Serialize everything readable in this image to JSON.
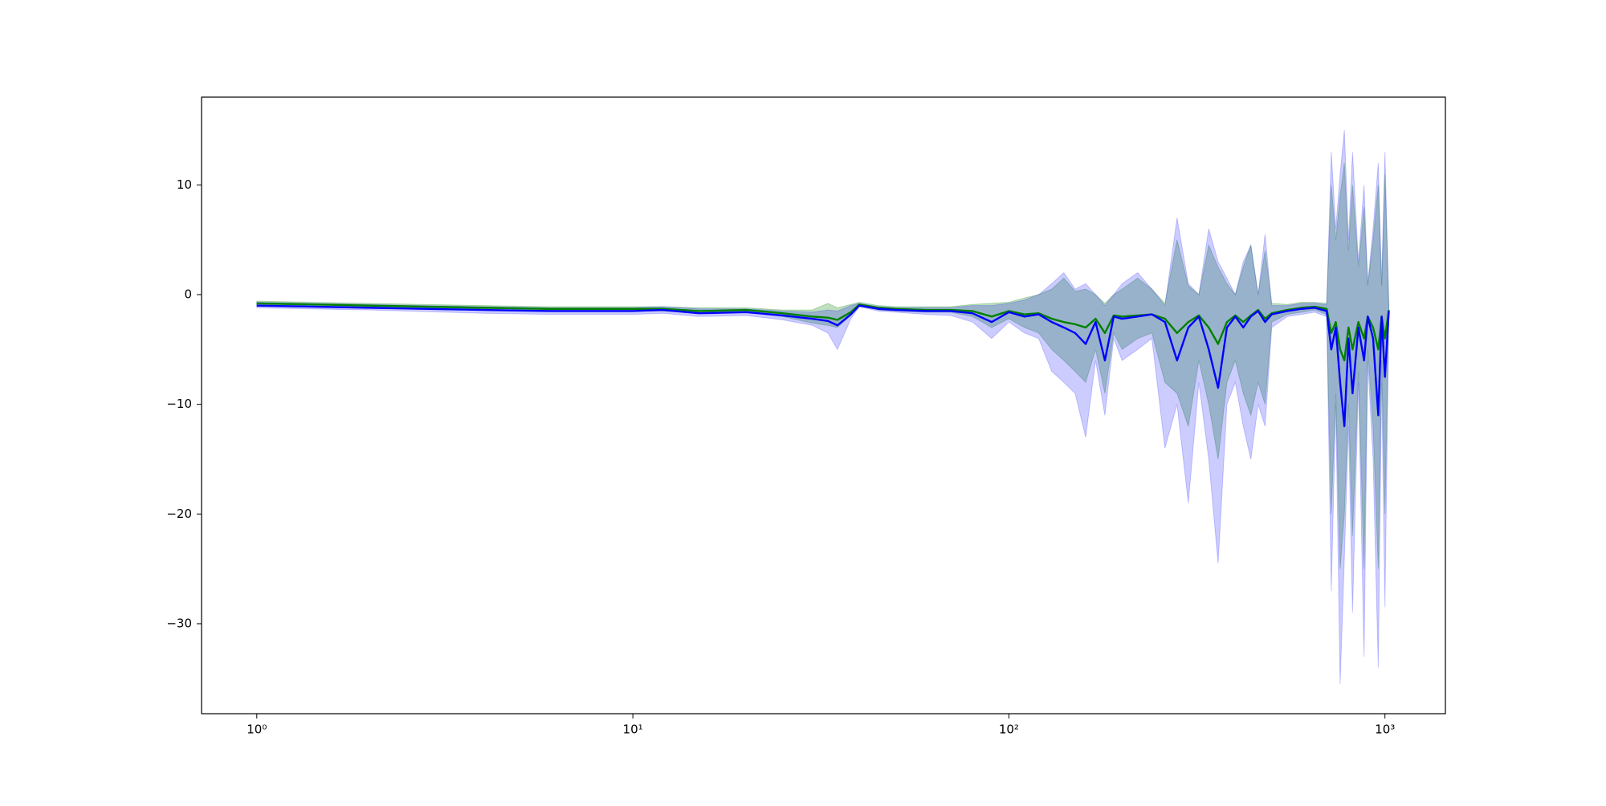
{
  "chart_data": {
    "type": "line",
    "xscale": "log",
    "xlim": [
      0.713,
      1448
    ],
    "ylim": [
      -38.2,
      18.0
    ],
    "xticks": [
      {
        "value": 1,
        "label": "10⁰"
      },
      {
        "value": 10,
        "label": "10¹"
      },
      {
        "value": 100,
        "label": "10²"
      },
      {
        "value": 1000,
        "label": "10³"
      }
    ],
    "yticks": [
      {
        "value": -30,
        "label": "−30"
      },
      {
        "value": -20,
        "label": "−20"
      },
      {
        "value": -10,
        "label": "−10"
      },
      0,
      10
    ],
    "x": [
      1,
      2,
      4,
      6,
      10,
      12,
      15,
      20,
      25,
      30,
      33,
      35,
      38,
      40,
      45,
      50,
      60,
      70,
      80,
      90,
      100,
      110,
      120,
      130,
      140,
      150,
      160,
      170,
      180,
      190,
      200,
      220,
      240,
      260,
      280,
      300,
      320,
      340,
      360,
      380,
      400,
      420,
      440,
      460,
      480,
      500,
      550,
      600,
      650,
      700,
      720,
      740,
      760,
      780,
      800,
      820,
      850,
      880,
      900,
      930,
      960,
      980,
      1000,
      1024
    ],
    "series": [
      {
        "color": "#008000",
        "band_opacity": 0.25,
        "values": [
          -0.8,
          -1.0,
          -1.2,
          -1.3,
          -1.3,
          -1.3,
          -1.5,
          -1.4,
          -1.7,
          -2.0,
          -2.1,
          -2.3,
          -1.6,
          -0.9,
          -1.2,
          -1.3,
          -1.4,
          -1.4,
          -1.5,
          -2.0,
          -1.5,
          -1.8,
          -1.7,
          -2.2,
          -2.5,
          -2.7,
          -3.0,
          -2.2,
          -3.5,
          -1.9,
          -2.0,
          -1.9,
          -1.8,
          -2.2,
          -3.5,
          -2.5,
          -1.9,
          -3.0,
          -4.5,
          -2.5,
          -1.9,
          -2.5,
          -1.9,
          -1.4,
          -2.2,
          -1.7,
          -1.4,
          -1.2,
          -1.1,
          -1.3,
          -3.5,
          -2.5,
          -5.0,
          -6.0,
          -3.0,
          -5.0,
          -2.5,
          -4.0,
          -2.0,
          -3.0,
          -5.0,
          -2.0,
          -4.0,
          -1.4
        ],
        "lower": [
          -1.0,
          -1.2,
          -1.4,
          -1.5,
          -1.5,
          -1.5,
          -1.7,
          -1.6,
          -2.0,
          -2.6,
          -2.8,
          -3.0,
          -1.9,
          -1.0,
          -1.4,
          -1.5,
          -1.6,
          -1.6,
          -2.0,
          -3.0,
          -2.2,
          -3.0,
          -3.5,
          -5.0,
          -6.0,
          -7.0,
          -8.0,
          -5.0,
          -9.0,
          -3.5,
          -5.0,
          -4.0,
          -3.5,
          -8.0,
          -9.0,
          -12.0,
          -6.0,
          -10.0,
          -15.0,
          -8.0,
          -6.0,
          -9.0,
          -11.0,
          -8.0,
          -10.0,
          -2.5,
          -1.8,
          -1.6,
          -1.4,
          -1.8,
          -20.0,
          -9.0,
          -25.0,
          -20.0,
          -10.0,
          -22.0,
          -7.0,
          -25.0,
          -5.0,
          -12.0,
          -25.0,
          -6.0,
          -20.0,
          -1.8
        ],
        "upper": [
          -0.6,
          -0.8,
          -1.0,
          -1.1,
          -1.1,
          -1.1,
          -1.2,
          -1.2,
          -1.4,
          -1.4,
          -0.8,
          -1.2,
          -0.9,
          -0.7,
          -1.0,
          -1.1,
          -1.1,
          -1.1,
          -0.9,
          -0.8,
          -0.7,
          -0.3,
          0.0,
          0.5,
          1.5,
          0.3,
          0.5,
          0.0,
          -0.8,
          0.0,
          0.5,
          1.5,
          0.5,
          -0.8,
          5.0,
          0.8,
          0.0,
          4.5,
          2.5,
          1.0,
          0.0,
          2.5,
          4.5,
          0.0,
          4.0,
          -0.8,
          -0.9,
          -0.7,
          -0.7,
          -0.8,
          10.0,
          5.0,
          9.0,
          12.0,
          4.0,
          10.0,
          2.5,
          8.0,
          0.8,
          5.0,
          10.0,
          0.8,
          11.0,
          -0.8
        ]
      },
      {
        "color": "#0000ff",
        "band_opacity": 0.2,
        "values": [
          -1.0,
          -1.2,
          -1.4,
          -1.5,
          -1.5,
          -1.4,
          -1.7,
          -1.6,
          -1.9,
          -2.2,
          -2.4,
          -2.8,
          -1.8,
          -1.0,
          -1.3,
          -1.4,
          -1.5,
          -1.5,
          -1.7,
          -2.5,
          -1.6,
          -2.0,
          -1.8,
          -2.5,
          -3.0,
          -3.5,
          -4.5,
          -2.5,
          -6.0,
          -2.0,
          -2.2,
          -2.0,
          -1.8,
          -2.5,
          -6.0,
          -3.0,
          -2.0,
          -5.0,
          -8.5,
          -3.0,
          -2.0,
          -3.0,
          -2.0,
          -1.5,
          -2.5,
          -1.8,
          -1.5,
          -1.3,
          -1.2,
          -1.5,
          -5.0,
          -3.0,
          -8.0,
          -12.0,
          -4.0,
          -9.0,
          -3.0,
          -6.0,
          -2.0,
          -4.0,
          -11.0,
          -2.0,
          -7.5,
          -1.5
        ],
        "lower": [
          -1.2,
          -1.4,
          -1.7,
          -1.8,
          -1.8,
          -1.7,
          -2.0,
          -1.9,
          -2.3,
          -2.8,
          -3.5,
          -5.0,
          -2.2,
          -1.1,
          -1.5,
          -1.6,
          -1.8,
          -1.9,
          -2.5,
          -4.0,
          -2.5,
          -3.5,
          -4.0,
          -7.0,
          -8.0,
          -9.0,
          -13.0,
          -6.0,
          -11.0,
          -4.0,
          -6.0,
          -5.0,
          -4.0,
          -14.0,
          -10.0,
          -19.0,
          -8.0,
          -15.0,
          -24.5,
          -10.0,
          -8.0,
          -12.0,
          -15.0,
          -10.0,
          -12.0,
          -3.0,
          -2.0,
          -1.8,
          -1.6,
          -2.0,
          -27.0,
          -10.0,
          -35.5,
          -24.0,
          -12.0,
          -29.0,
          -8.0,
          -33.0,
          -6.0,
          -15.0,
          -34.0,
          -8.0,
          -28.5,
          -2.0
        ],
        "upper": [
          -0.7,
          -0.9,
          -1.1,
          -1.2,
          -1.2,
          -1.1,
          -1.3,
          -1.3,
          -1.5,
          -1.6,
          -1.4,
          -1.5,
          -1.0,
          -0.8,
          -1.1,
          -1.2,
          -1.2,
          -1.2,
          -1.0,
          -1.0,
          -0.8,
          -0.5,
          0.0,
          1.0,
          2.0,
          0.5,
          1.0,
          0.0,
          -1.0,
          0.0,
          1.0,
          2.0,
          0.5,
          -1.0,
          7.0,
          1.0,
          0.0,
          6.0,
          3.0,
          1.5,
          0.0,
          3.0,
          4.5,
          0.0,
          5.5,
          -1.0,
          -1.0,
          -0.8,
          -0.8,
          -0.9,
          13.0,
          6.0,
          11.0,
          15.0,
          5.0,
          13.0,
          3.0,
          10.0,
          1.0,
          6.0,
          12.0,
          1.0,
          13.0,
          -1.0
        ]
      }
    ]
  }
}
